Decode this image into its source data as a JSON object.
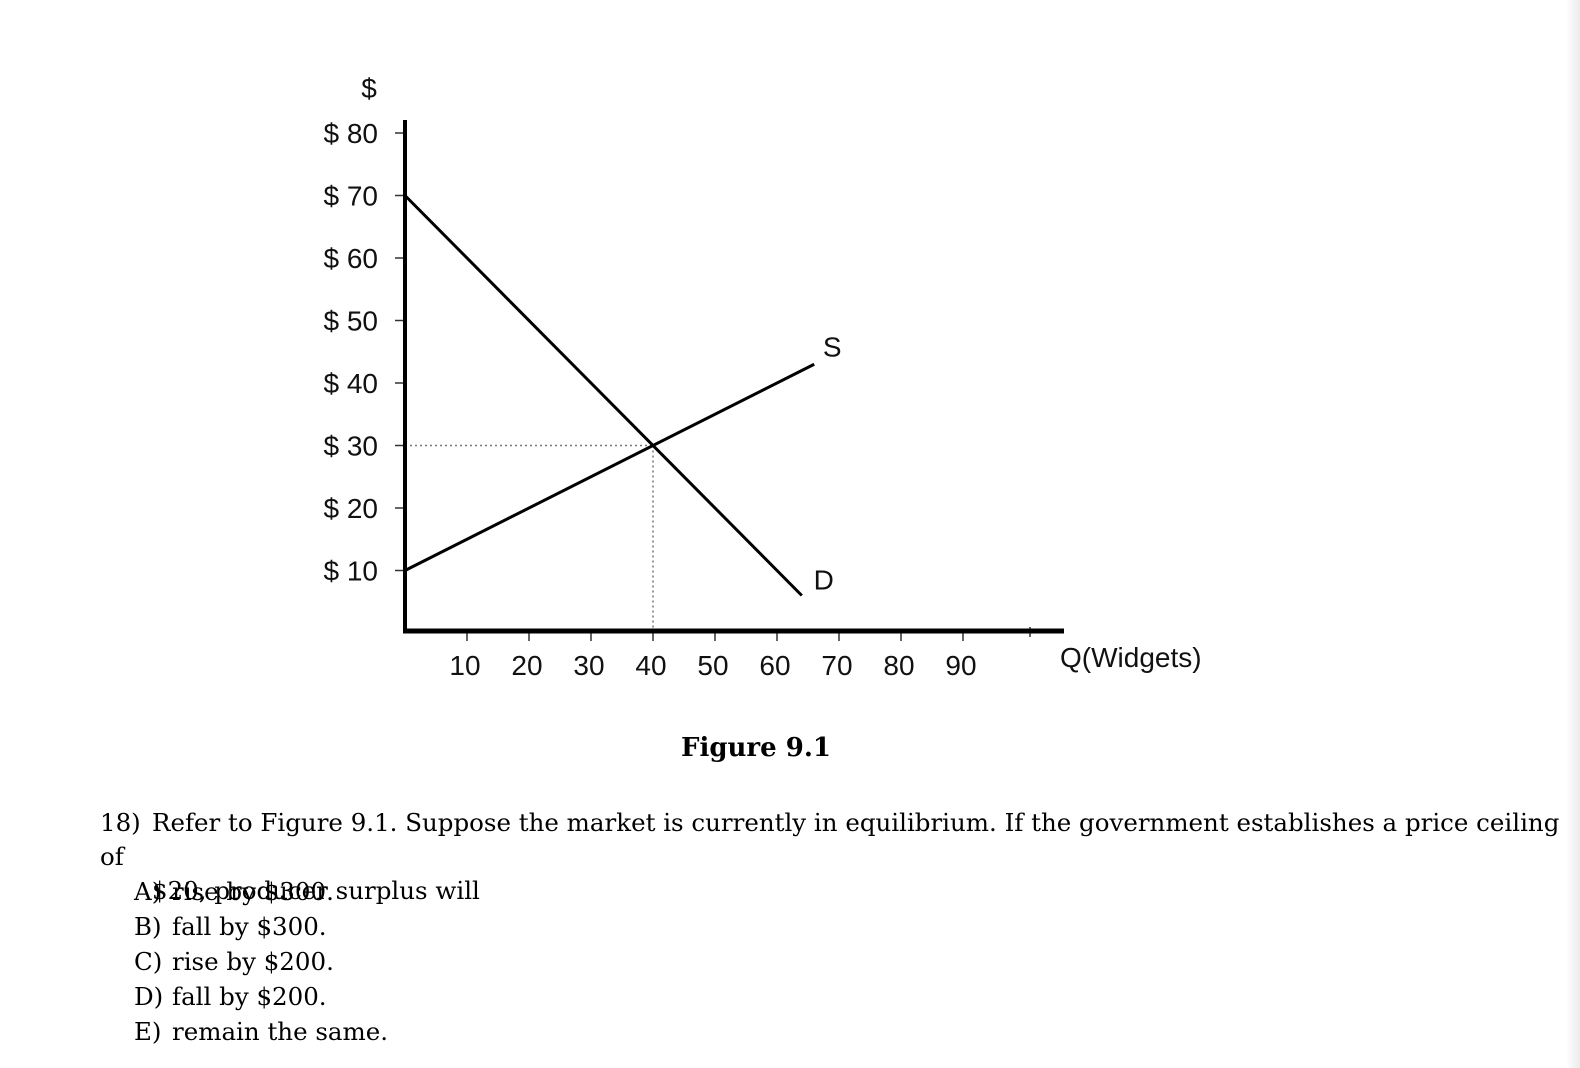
{
  "chart_data": {
    "type": "line",
    "ylabel_top": "$",
    "xlabel": "Q(Widgets)",
    "y_ticks": [
      {
        "value": 80,
        "label": "$ 80"
      },
      {
        "value": 70,
        "label": "$ 70"
      },
      {
        "value": 60,
        "label": "$ 60"
      },
      {
        "value": 50,
        "label": "$ 50"
      },
      {
        "value": 40,
        "label": "$ 40"
      },
      {
        "value": 30,
        "label": "$ 30"
      },
      {
        "value": 20,
        "label": "$ 20"
      },
      {
        "value": 10,
        "label": "$ 10"
      }
    ],
    "x_ticks": [
      {
        "value": 10,
        "label": "10"
      },
      {
        "value": 20,
        "label": "20"
      },
      {
        "value": 30,
        "label": "30"
      },
      {
        "value": 40,
        "label": "40"
      },
      {
        "value": 50,
        "label": "50"
      },
      {
        "value": 60,
        "label": "60"
      },
      {
        "value": 70,
        "label": "70"
      },
      {
        "value": 80,
        "label": "80"
      },
      {
        "value": 90,
        "label": "90"
      }
    ],
    "xlim": [
      0,
      100
    ],
    "ylim": [
      0,
      80
    ],
    "series": [
      {
        "name": "D",
        "points": [
          [
            0,
            70
          ],
          [
            64,
            6
          ]
        ]
      },
      {
        "name": "S",
        "points": [
          [
            0,
            10
          ],
          [
            66,
            43
          ]
        ]
      }
    ],
    "equilibrium": {
      "x": 40,
      "y": 30
    },
    "grid": false,
    "legend": "none"
  },
  "caption": "Figure 9.1",
  "question": {
    "number": "18)",
    "line1": "Refer to Figure 9.1.  Suppose the market is currently in equilibrium.  If the government establishes a price ceiling of",
    "line2": "$20, producer surplus will"
  },
  "choices": [
    {
      "letter": "A)",
      "text": "rise by $300."
    },
    {
      "letter": "B)",
      "text": "fall by $300."
    },
    {
      "letter": "C)",
      "text": "rise by $200."
    },
    {
      "letter": "D)",
      "text": "fall by $200."
    },
    {
      "letter": "E)",
      "text": "remain the same."
    }
  ]
}
